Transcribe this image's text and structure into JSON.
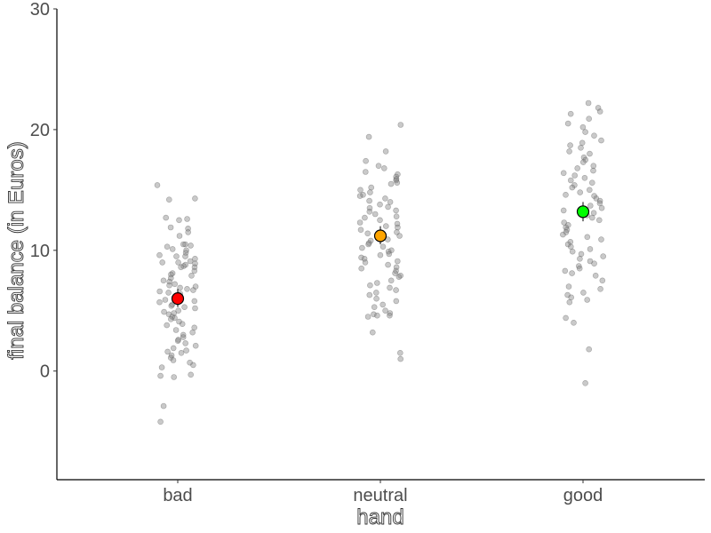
{
  "chart_data": {
    "type": "scatter",
    "title": "",
    "xlabel": "hand",
    "ylabel": "final balance (in Euros)",
    "categories": [
      "bad",
      "neutral",
      "good"
    ],
    "ylim": [
      -9,
      30
    ],
    "yticks": [
      0,
      10,
      20,
      30
    ],
    "grid": false,
    "legend": "none",
    "raw_point_color": "#7f7f7f",
    "series": [
      {
        "category": "bad",
        "mean": 6.0,
        "error": [
          5.3,
          6.8
        ],
        "mean_color": "#ff0000",
        "values": [
          15.4,
          14.3,
          14.2,
          12.7,
          12.6,
          12.5,
          11.9,
          11.8,
          11.5,
          11.2,
          10.5,
          10.5,
          10.4,
          10.3,
          10.1,
          10.0,
          9.8,
          9.6,
          9.5,
          9.5,
          9.3,
          9.1,
          9.0,
          9.0,
          8.9,
          8.8,
          8.7,
          8.6,
          8.6,
          8.3,
          8.1,
          8.0,
          7.9,
          7.7,
          7.5,
          7.4,
          7.2,
          7.1,
          7.0,
          6.9,
          6.8,
          6.7,
          6.6,
          6.5,
          6.4,
          6.2,
          6.1,
          5.9,
          5.8,
          5.7,
          5.5,
          5.4,
          5.3,
          5.2,
          5.0,
          4.9,
          4.8,
          4.7,
          4.5,
          4.4,
          4.3,
          4.1,
          3.9,
          3.8,
          3.6,
          3.4,
          3.2,
          3.0,
          2.8,
          2.6,
          2.5,
          2.3,
          2.1,
          1.9,
          1.7,
          1.6,
          1.5,
          1.3,
          1.1,
          0.9,
          0.7,
          0.5,
          0.3,
          -0.3,
          -0.4,
          -0.5,
          -2.9,
          -4.2
        ]
      },
      {
        "category": "neutral",
        "mean": 11.2,
        "error": [
          10.5,
          12.0
        ],
        "mean_color": "#ffa500",
        "values": [
          20.4,
          19.4,
          18.2,
          17.4,
          17.0,
          16.8,
          16.5,
          16.3,
          16.1,
          15.9,
          15.8,
          15.6,
          15.5,
          15.2,
          15.0,
          14.8,
          14.6,
          14.5,
          14.3,
          14.1,
          14.0,
          13.8,
          13.6,
          13.5,
          13.3,
          13.2,
          13.0,
          12.8,
          12.7,
          12.5,
          12.3,
          12.2,
          12.0,
          11.9,
          11.7,
          11.5,
          11.4,
          11.2,
          11.1,
          10.9,
          10.8,
          10.6,
          10.5,
          10.3,
          10.2,
          10.0,
          9.9,
          9.7,
          9.6,
          9.4,
          9.3,
          9.1,
          9.0,
          8.8,
          8.6,
          8.5,
          8.3,
          8.1,
          7.9,
          7.8,
          7.5,
          7.3,
          7.1,
          6.9,
          6.7,
          6.5,
          6.3,
          6.0,
          5.8,
          5.5,
          5.3,
          5.0,
          4.8,
          4.7,
          4.6,
          4.6,
          4.5,
          3.2,
          1.5,
          1.0
        ]
      },
      {
        "category": "good",
        "mean": 13.2,
        "error": [
          12.4,
          14.0
        ],
        "mean_color": "#00ff00",
        "values": [
          22.2,
          21.8,
          21.5,
          21.3,
          20.9,
          20.5,
          20.2,
          19.8,
          19.5,
          19.1,
          18.9,
          18.7,
          18.5,
          18.2,
          18.0,
          17.7,
          17.5,
          17.3,
          17.0,
          16.8,
          16.6,
          16.4,
          16.2,
          16.0,
          15.8,
          15.6,
          15.4,
          15.2,
          15.0,
          14.8,
          14.6,
          14.5,
          14.3,
          14.1,
          13.9,
          13.7,
          13.5,
          13.3,
          13.1,
          12.9,
          12.7,
          12.5,
          12.3,
          12.1,
          11.9,
          11.7,
          11.5,
          11.3,
          11.1,
          10.9,
          10.7,
          10.5,
          10.3,
          10.1,
          9.9,
          9.7,
          9.5,
          9.3,
          9.1,
          8.9,
          8.7,
          8.5,
          8.3,
          8.1,
          7.9,
          7.5,
          7.0,
          6.8,
          6.5,
          6.3,
          6.1,
          5.9,
          5.7,
          4.4,
          4.0,
          1.8,
          -1.0
        ]
      }
    ]
  }
}
